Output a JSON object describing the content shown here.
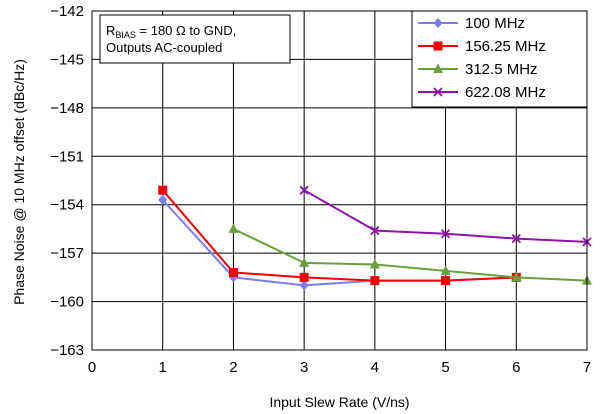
{
  "chart_data": {
    "type": "line",
    "xlabel": "Input Slew Rate (V/ns)",
    "ylabel": "Phase Noise @ 10 MHz offset (dBc/Hz)",
    "xlim": [
      0,
      7
    ],
    "ylim": [
      -163,
      -142
    ],
    "x_ticks": [
      "0",
      "1",
      "2",
      "3",
      "4",
      "5",
      "6",
      "7"
    ],
    "y_ticks": [
      "−142",
      "−145",
      "−148",
      "−151",
      "−154",
      "−157",
      "−160",
      "−163"
    ],
    "grid": true,
    "legend_position": "top-right",
    "annotation": {
      "line1_prefix": "R",
      "line1_sub": "BIAS",
      "line1_suffix": " = 180 Ω to GND,",
      "line2": "Outputs AC-coupled"
    },
    "series": [
      {
        "name": "100 MHz",
        "color": "#7b7bf2",
        "marker": "diamond",
        "x": [
          1,
          2,
          3,
          4,
          5,
          6
        ],
        "y": [
          -153.7,
          -158.5,
          -159.0,
          -158.7,
          -158.7,
          -158.5
        ]
      },
      {
        "name": "156.25 MHz",
        "color": "#f20000",
        "marker": "square",
        "x": [
          1,
          2,
          3,
          4,
          5,
          6
        ],
        "y": [
          -153.1,
          -158.2,
          -158.5,
          -158.7,
          -158.7,
          -158.5
        ]
      },
      {
        "name": "312.5 MHz",
        "color": "#6b9e3c",
        "marker": "triangle",
        "x": [
          2,
          3,
          4,
          5,
          6,
          7
        ],
        "y": [
          -155.5,
          -157.6,
          -157.7,
          -158.1,
          -158.5,
          -158.7
        ]
      },
      {
        "name": "622.08 MHz",
        "color": "#8e11a9",
        "marker": "x",
        "x": [
          3,
          4,
          5,
          6,
          7
        ],
        "y": [
          -153.1,
          -155.6,
          -155.8,
          -156.1,
          -156.3
        ]
      }
    ]
  }
}
